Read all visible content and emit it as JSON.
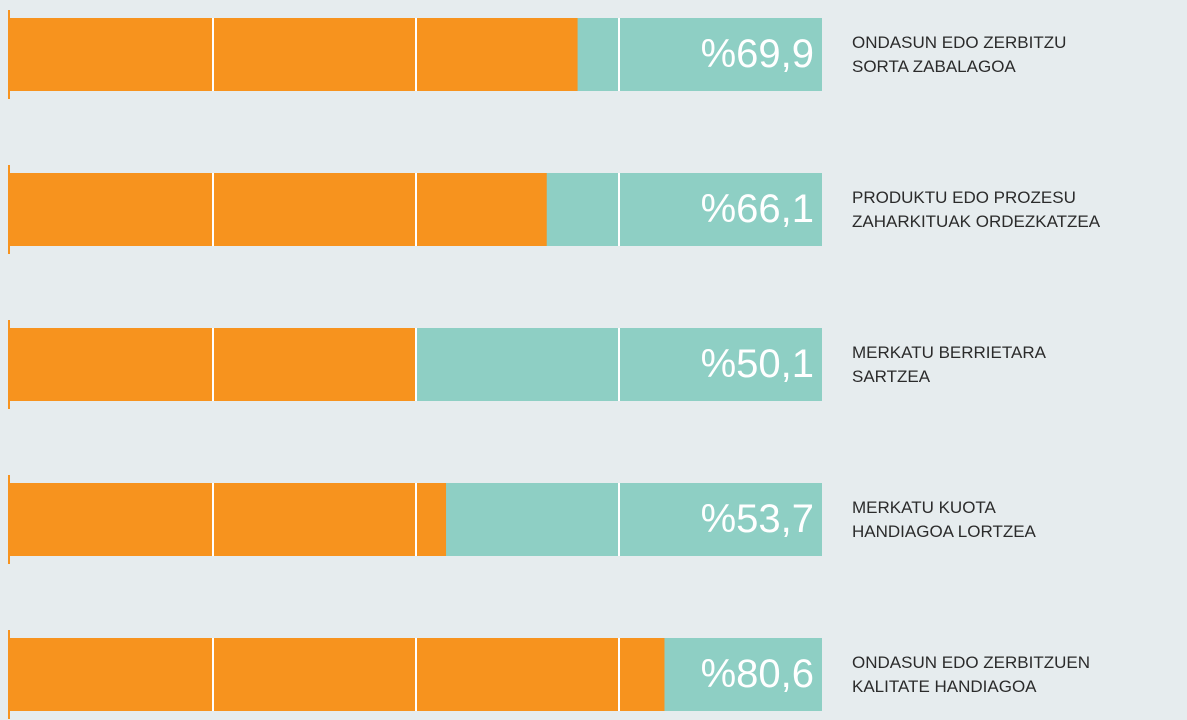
{
  "chart_data": {
    "type": "bar",
    "orientation": "horizontal",
    "categories": [
      "ONDASUN EDO ZERBITZU\nSORTA ZABALAGOA",
      "PRODUKTU EDO PROZESU\nZAHARKITUAK ORDEZKATZEA",
      "MERKATU BERRIETARA\nSARTZEA",
      "MERKATU KUOTA\nHANDIAGOA LORTZEA",
      "ONDASUN EDO ZERBITZUEN\nKALITATE HANDIAGOA"
    ],
    "values": [
      69.9,
      66.1,
      50.1,
      53.7,
      80.6
    ],
    "value_labels": [
      "%69,9",
      "%66,1",
      "%50,1",
      "%53,7",
      "%80,6"
    ],
    "color": "#f7931e",
    "track_color": "#8ecfc4",
    "xlim": [
      0,
      100
    ],
    "xticks": [
      0,
      25,
      50,
      75,
      100
    ],
    "grid": true
  }
}
